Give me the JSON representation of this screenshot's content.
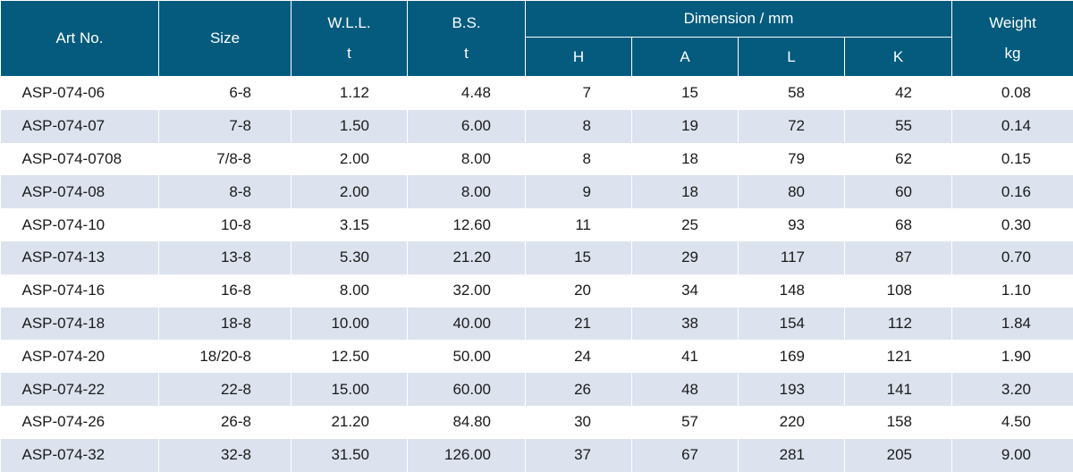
{
  "header": {
    "art_no": "Art No.",
    "size": "Size",
    "wll": "W.L.L.",
    "wll_unit": "t",
    "bs": "B.S.",
    "bs_unit": "t",
    "dimension": "Dimension / mm",
    "h": "H",
    "a": "A",
    "l": "L",
    "k": "K",
    "weight": "Weight",
    "weight_unit": "kg"
  },
  "rows": [
    [
      "ASP-074-06",
      "6-8",
      "1.12",
      "4.48",
      "7",
      "15",
      "58",
      "42",
      "0.08"
    ],
    [
      "ASP-074-07",
      "7-8",
      "1.50",
      "6.00",
      "8",
      "19",
      "72",
      "55",
      "0.14"
    ],
    [
      "ASP-074-0708",
      "7/8-8",
      "2.00",
      "8.00",
      "8",
      "18",
      "79",
      "62",
      "0.15"
    ],
    [
      "ASP-074-08",
      "8-8",
      "2.00",
      "8.00",
      "9",
      "18",
      "80",
      "60",
      "0.16"
    ],
    [
      "ASP-074-10",
      "10-8",
      "3.15",
      "12.60",
      "11",
      "25",
      "93",
      "68",
      "0.30"
    ],
    [
      "ASP-074-13",
      "13-8",
      "5.30",
      "21.20",
      "15",
      "29",
      "117",
      "87",
      "0.70"
    ],
    [
      "ASP-074-16",
      "16-8",
      "8.00",
      "32.00",
      "20",
      "34",
      "148",
      "108",
      "1.10"
    ],
    [
      "ASP-074-18",
      "18-8",
      "10.00",
      "40.00",
      "21",
      "38",
      "154",
      "112",
      "1.84"
    ],
    [
      "ASP-074-20",
      "18/20-8",
      "12.50",
      "50.00",
      "24",
      "41",
      "169",
      "121",
      "1.90"
    ],
    [
      "ASP-074-22",
      "22-8",
      "15.00",
      "60.00",
      "26",
      "48",
      "193",
      "141",
      "3.20"
    ],
    [
      "ASP-074-26",
      "26-8",
      "21.20",
      "84.80",
      "30",
      "57",
      "220",
      "158",
      "4.50"
    ],
    [
      "ASP-074-32",
      "32-8",
      "31.50",
      "126.00",
      "37",
      "67",
      "281",
      "205",
      "9.00"
    ]
  ]
}
